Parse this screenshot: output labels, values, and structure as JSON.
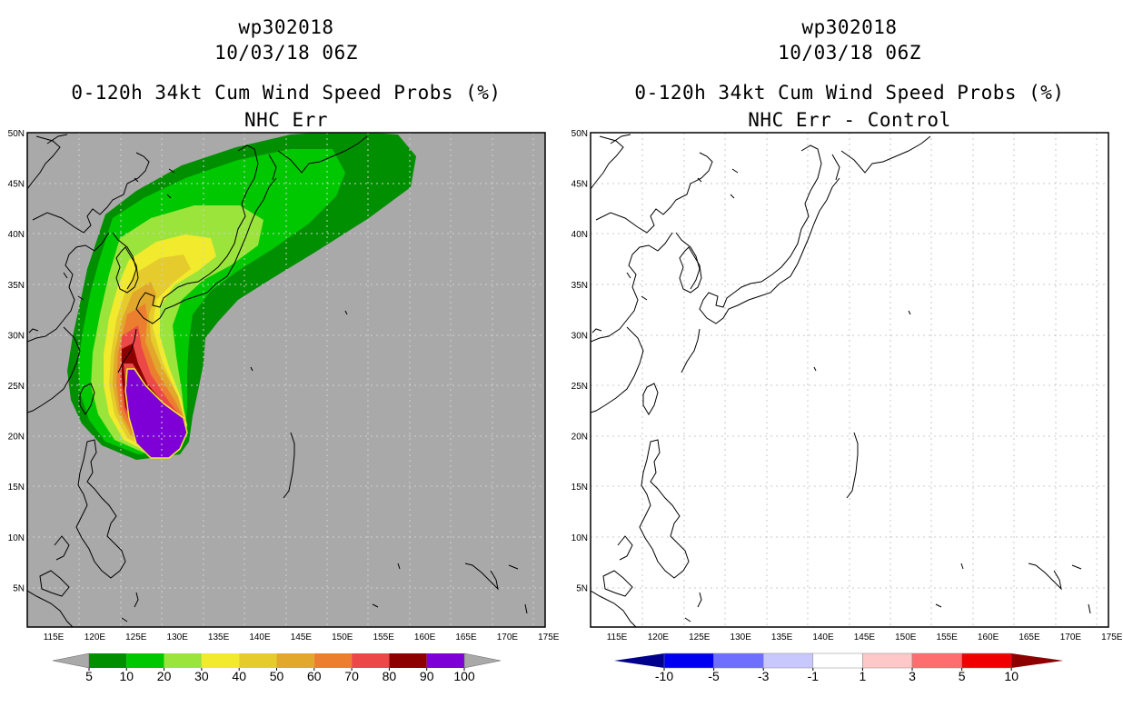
{
  "left_panel": {
    "storm_id": "wp302018",
    "datetime": "10/03/18 06Z",
    "product": "0-120h 34kt Cum Wind Speed Probs (%)",
    "subtitle": "NHC Err"
  },
  "right_panel": {
    "storm_id": "wp302018",
    "datetime": "10/03/18 06Z",
    "product": "0-120h 34kt Cum Wind Speed Probs (%)",
    "subtitle": "NHC Err - Control"
  },
  "axes": {
    "lat_labels": [
      "50N",
      "45N",
      "40N",
      "35N",
      "30N",
      "25N",
      "20N",
      "15N",
      "10N",
      "5N"
    ],
    "lon_labels": [
      "115E",
      "120E",
      "125E",
      "130E",
      "135E",
      "140E",
      "145E",
      "150E",
      "155E",
      "160E",
      "165E",
      "170E",
      "175E"
    ],
    "lat_range": [
      1,
      50
    ],
    "lon_range": [
      113,
      176
    ]
  },
  "colorbar_left": {
    "labels": [
      "5",
      "10",
      "20",
      "30",
      "40",
      "50",
      "60",
      "70",
      "80",
      "90",
      "100"
    ],
    "colors": [
      "#008f00",
      "#00c800",
      "#9be43b",
      "#f2ea2c",
      "#e5cc2c",
      "#e1a82c",
      "#ec7f2f",
      "#ec4848",
      "#8c0000",
      "#7f00d7"
    ],
    "end_color": "#a9a9a9"
  },
  "colorbar_right": {
    "labels": [
      "-10",
      "-5",
      "-3",
      "-1",
      "1",
      "3",
      "5",
      "10"
    ],
    "colors": [
      "#0000f0",
      "#6e6eff",
      "#c8c8ff",
      "#ffffff",
      "#ffc8c8",
      "#ff6e6e",
      "#f00000"
    ],
    "end_low": "#00008c",
    "end_high": "#8c0000"
  },
  "colors": {
    "background": "#a9a9a9",
    "grid": "#cccccc"
  }
}
